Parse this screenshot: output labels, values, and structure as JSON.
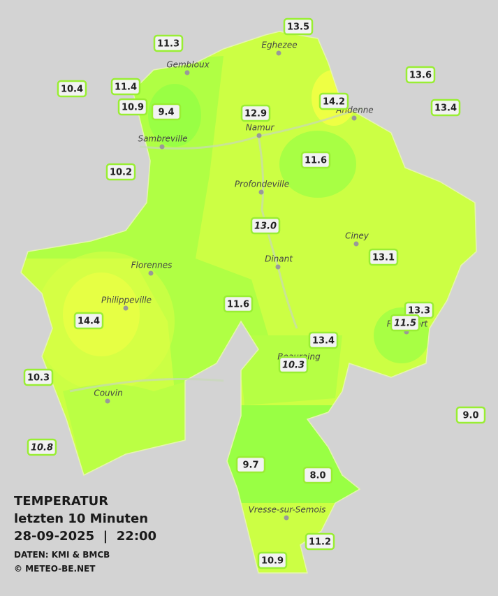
{
  "towns": [
    "Eghezee",
    "Gembloux",
    "Andenne",
    "Namur",
    "Sambreville",
    "Profondeville",
    "Ciney",
    "Dinant",
    "Florennes",
    "Philippeville",
    "Rochefort",
    "Beauraing",
    "Couvin",
    "Vresse-sur-Semois"
  ],
  "stations": [
    {
      "label": "13.5",
      "italic": false
    },
    {
      "label": "11.3",
      "italic": false
    },
    {
      "label": "13.6",
      "italic": false
    },
    {
      "label": "10.4",
      "italic": false
    },
    {
      "label": "11.4",
      "italic": false
    },
    {
      "label": "14.2",
      "italic": false
    },
    {
      "label": "10.9",
      "italic": false
    },
    {
      "label": "9.4",
      "italic": false
    },
    {
      "label": "12.9",
      "italic": false
    },
    {
      "label": "13.4",
      "italic": false
    },
    {
      "label": "11.6",
      "italic": false
    },
    {
      "label": "10.2",
      "italic": false
    },
    {
      "label": "13.0",
      "italic": true
    },
    {
      "label": "13.1",
      "italic": false
    },
    {
      "label": "11.6",
      "italic": false
    },
    {
      "label": "13.3",
      "italic": false
    },
    {
      "label": "14.4",
      "italic": false
    },
    {
      "label": "11.5",
      "italic": true
    },
    {
      "label": "13.4",
      "italic": false
    },
    {
      "label": "10.3",
      "italic": true
    },
    {
      "label": "10.3",
      "italic": false
    },
    {
      "label": "9.0",
      "italic": false
    },
    {
      "label": "10.8",
      "italic": true
    },
    {
      "label": "9.7",
      "italic": false
    },
    {
      "label": "8.0",
      "italic": false
    },
    {
      "label": "11.2",
      "italic": false
    },
    {
      "label": "10.9",
      "italic": false
    }
  ],
  "info": {
    "title": "TEMPERATUR",
    "period": "letzten 10 Minuten",
    "datetime": "28-09-2025  |  22:00",
    "source": "DATEN: KMI & BMCB",
    "copyright": "© METEO-BE.NET"
  }
}
